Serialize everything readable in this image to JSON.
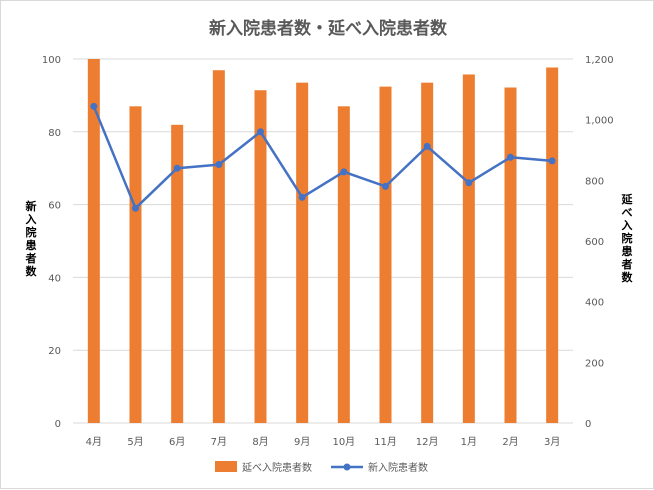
{
  "chart_data": {
    "type": "bar+line",
    "title": "新入院患者数・延べ入院患者数",
    "categories": [
      "4月",
      "5月",
      "6月",
      "7月",
      "8月",
      "9月",
      "10月",
      "11月",
      "12月",
      "1月",
      "2月",
      "3月"
    ],
    "series": [
      {
        "name": "延べ入院患者数",
        "type": "bar",
        "axis": "right",
        "color": "#ed7d31",
        "values": [
          1200,
          1044,
          983,
          1163,
          1097,
          1122,
          1044,
          1109,
          1122,
          1149,
          1106,
          1172
        ]
      },
      {
        "name": "新入院患者数",
        "type": "line",
        "axis": "left",
        "color": "#4472c4",
        "values": [
          87,
          59,
          70,
          71,
          80,
          62,
          69,
          65,
          76,
          66,
          73,
          72
        ]
      }
    ],
    "y_left": {
      "label": "新入院患者数",
      "range": [
        0,
        100
      ],
      "ticks": [
        "0",
        "20",
        "40",
        "60",
        "80",
        "100"
      ]
    },
    "y_right": {
      "label": "延べ入院患者数",
      "range": [
        0,
        1200
      ],
      "ticks": [
        "0",
        "200",
        "400",
        "600",
        "800",
        "1,000",
        "1,200"
      ]
    },
    "grid": true,
    "legend": "bottom"
  }
}
